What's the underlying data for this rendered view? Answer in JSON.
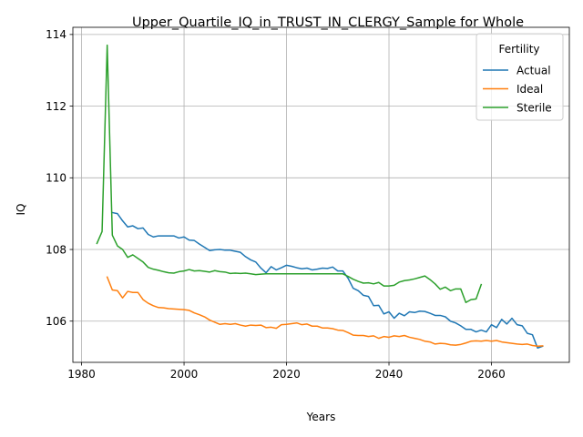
{
  "chart_data": {
    "type": "line",
    "title": "Upper_Quartile_IQ_in_TRUST_IN_CLERGY_Sample for Whole",
    "xlabel": "Years",
    "ylabel": "IQ",
    "xlim": [
      1978.3,
      2075.2
    ],
    "ylim": [
      104.85,
      114.2
    ],
    "xticks": [
      1980,
      2000,
      2020,
      2040,
      2060
    ],
    "yticks": [
      106,
      108,
      110,
      112,
      114
    ],
    "grid": true,
    "legend": {
      "title": "Fertility",
      "placement": "top-right"
    },
    "series": [
      {
        "name": "Actual",
        "color": "#1f77b4",
        "x": [
          1986,
          1987,
          1988,
          1989,
          1990,
          1991,
          1992,
          1993,
          1994,
          1995,
          1996,
          1997,
          1998,
          1999,
          2000,
          2001,
          2002,
          2003,
          2004,
          2005,
          2006,
          2007,
          2008,
          2009,
          2010,
          2011,
          2012,
          2013,
          2014,
          2015,
          2016,
          2017,
          2018,
          2019,
          2020,
          2021,
          2022,
          2023,
          2024,
          2025,
          2026,
          2027,
          2028,
          2029,
          2030,
          2031,
          2032,
          2033,
          2034,
          2035,
          2036,
          2037,
          2038,
          2039,
          2040,
          2041,
          2042,
          2043,
          2044,
          2045,
          2046,
          2047,
          2048,
          2049,
          2050,
          2051,
          2052,
          2053,
          2054,
          2055,
          2056,
          2057,
          2058,
          2059,
          2060,
          2061,
          2062,
          2063,
          2064,
          2065,
          2066,
          2067,
          2068,
          2069,
          2070
        ],
        "values": [
          109.03,
          109.0,
          108.8,
          108.63,
          108.66,
          108.58,
          108.6,
          108.42,
          108.35,
          108.38,
          108.38,
          108.38,
          108.38,
          108.32,
          108.35,
          108.26,
          108.25,
          108.15,
          108.06,
          107.97,
          107.99,
          108.0,
          107.98,
          107.98,
          107.95,
          107.92,
          107.8,
          107.71,
          107.65,
          107.48,
          107.35,
          107.52,
          107.43,
          107.49,
          107.56,
          107.53,
          107.49,
          107.46,
          107.48,
          107.43,
          107.45,
          107.48,
          107.47,
          107.51,
          107.4,
          107.4,
          107.2,
          106.92,
          106.85,
          106.72,
          106.69,
          106.43,
          106.44,
          106.2,
          106.26,
          106.08,
          106.22,
          106.15,
          106.26,
          106.24,
          106.28,
          106.27,
          106.22,
          106.16,
          106.16,
          106.12,
          106.0,
          105.95,
          105.87,
          105.77,
          105.77,
          105.7,
          105.75,
          105.7,
          105.9,
          105.82,
          106.05,
          105.92,
          106.08,
          105.9,
          105.87,
          105.66,
          105.62,
          105.25,
          105.3
        ]
      },
      {
        "name": "Ideal",
        "color": "#ff7f0e",
        "x": [
          1985,
          1986,
          1987,
          1988,
          1989,
          1990,
          1991,
          1992,
          1993,
          1994,
          1995,
          1996,
          1997,
          1998,
          1999,
          2000,
          2001,
          2002,
          2003,
          2004,
          2005,
          2006,
          2007,
          2008,
          2009,
          2010,
          2011,
          2012,
          2013,
          2014,
          2015,
          2016,
          2017,
          2018,
          2019,
          2020,
          2021,
          2022,
          2023,
          2024,
          2025,
          2026,
          2027,
          2028,
          2029,
          2030,
          2031,
          2032,
          2033,
          2034,
          2035,
          2036,
          2037,
          2038,
          2039,
          2040,
          2041,
          2042,
          2043,
          2044,
          2045,
          2046,
          2047,
          2048,
          2049,
          2050,
          2051,
          2052,
          2053,
          2054,
          2055,
          2056,
          2057,
          2058,
          2059,
          2060,
          2061,
          2062,
          2063,
          2064,
          2065,
          2066,
          2067,
          2068,
          2069,
          2070
        ],
        "values": [
          107.23,
          106.87,
          106.85,
          106.65,
          106.83,
          106.8,
          106.8,
          106.6,
          106.5,
          106.43,
          106.38,
          106.37,
          106.35,
          106.34,
          106.33,
          106.32,
          106.3,
          106.23,
          106.18,
          106.12,
          106.03,
          105.97,
          105.91,
          105.93,
          105.91,
          105.93,
          105.89,
          105.86,
          105.89,
          105.88,
          105.89,
          105.82,
          105.83,
          105.8,
          105.9,
          105.91,
          105.93,
          105.95,
          105.9,
          105.92,
          105.86,
          105.86,
          105.81,
          105.81,
          105.79,
          105.75,
          105.74,
          105.68,
          105.61,
          105.6,
          105.6,
          105.57,
          105.59,
          105.52,
          105.57,
          105.55,
          105.59,
          105.57,
          105.6,
          105.55,
          105.52,
          105.49,
          105.44,
          105.42,
          105.36,
          105.38,
          105.37,
          105.34,
          105.33,
          105.35,
          105.39,
          105.44,
          105.45,
          105.44,
          105.46,
          105.44,
          105.46,
          105.42,
          105.4,
          105.38,
          105.36,
          105.35,
          105.36,
          105.32,
          105.3,
          105.31
        ]
      },
      {
        "name": "Sterile",
        "color": "#2ca02c",
        "x": [
          1983,
          1984,
          1985,
          1986,
          1987,
          1988,
          1989,
          1990,
          1991,
          1992,
          1993,
          1994,
          1995,
          1996,
          1997,
          1998,
          1999,
          2000,
          2001,
          2002,
          2003,
          2004,
          2005,
          2006,
          2007,
          2008,
          2009,
          2010,
          2011,
          2012,
          2013,
          2014,
          2015,
          2016,
          2017,
          2018,
          2019,
          2020,
          2021,
          2022,
          2023,
          2024,
          2025,
          2026,
          2027,
          2028,
          2029,
          2030,
          2031,
          2032,
          2033,
          2034,
          2035,
          2036,
          2037,
          2038,
          2039,
          2040,
          2041,
          2042,
          2043,
          2044,
          2045,
          2046,
          2047,
          2048,
          2049,
          2050,
          2051,
          2052,
          2053,
          2054,
          2055,
          2056,
          2057,
          2058
        ],
        "values": [
          108.17,
          108.5,
          113.7,
          108.4,
          108.1,
          108.0,
          107.78,
          107.85,
          107.75,
          107.65,
          107.5,
          107.45,
          107.42,
          107.38,
          107.35,
          107.34,
          107.38,
          107.4,
          107.44,
          107.4,
          107.41,
          107.39,
          107.37,
          107.41,
          107.38,
          107.37,
          107.33,
          107.34,
          107.33,
          107.34,
          107.32,
          107.3,
          107.31,
          107.32,
          107.32,
          107.32,
          107.32,
          107.32,
          107.32,
          107.32,
          107.32,
          107.32,
          107.32,
          107.32,
          107.32,
          107.32,
          107.32,
          107.32,
          107.32,
          107.25,
          107.17,
          107.11,
          107.06,
          107.07,
          107.04,
          107.08,
          106.98,
          106.98,
          107.0,
          107.09,
          107.13,
          107.15,
          107.18,
          107.22,
          107.26,
          107.16,
          107.04,
          106.89,
          106.95,
          106.85,
          106.9,
          106.9,
          106.52,
          106.6,
          106.62,
          107.02
        ]
      }
    ]
  }
}
